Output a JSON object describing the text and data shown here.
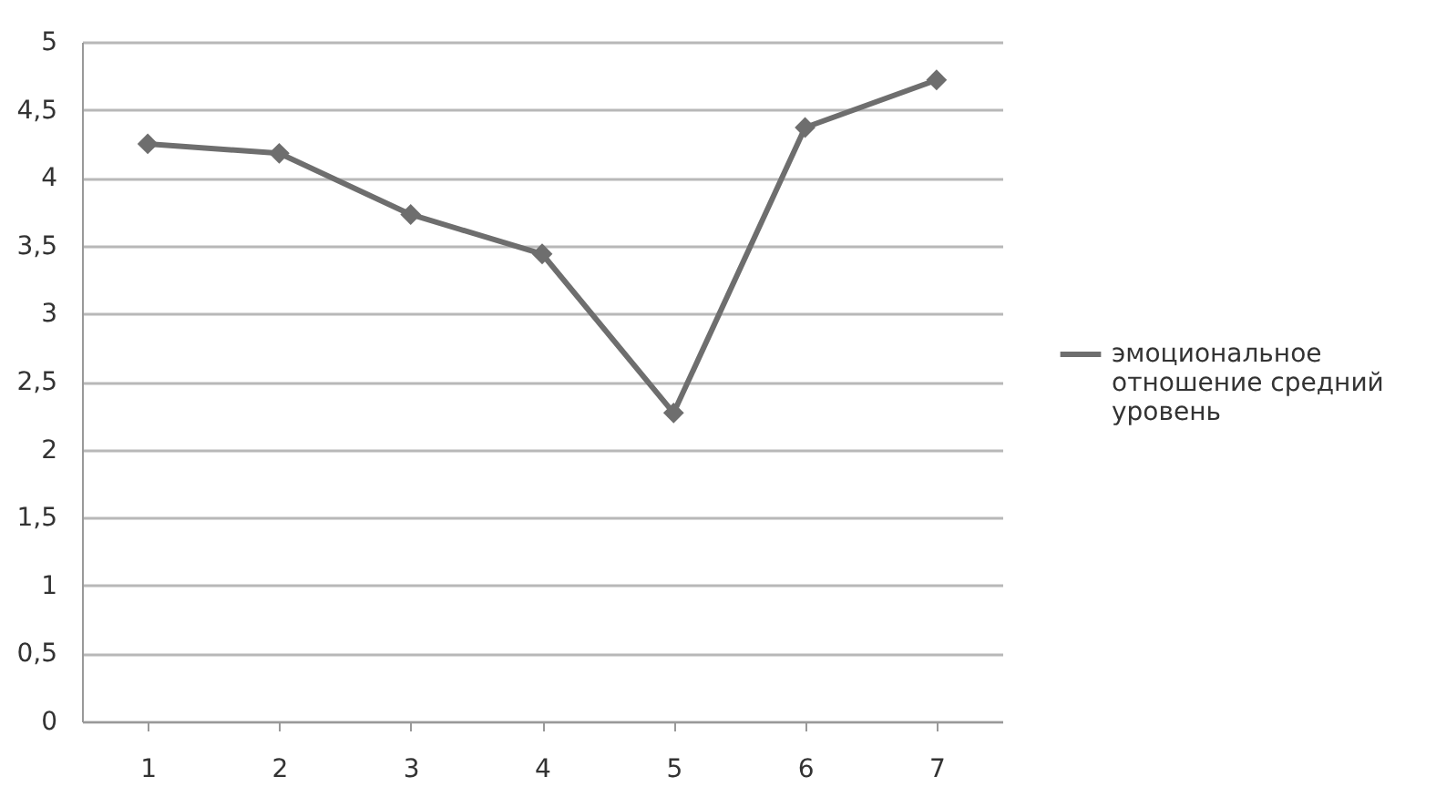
{
  "chart_data": {
    "type": "line",
    "categories": [
      "1",
      "2",
      "3",
      "4",
      "5",
      "6",
      "7"
    ],
    "series": [
      {
        "name": "эмоциональное отношение средний уровень",
        "color": "#6e6e6e",
        "values": [
          4.25,
          4.18,
          3.73,
          3.44,
          2.27,
          4.37,
          4.72
        ]
      }
    ],
    "ylim": [
      0,
      5
    ],
    "yticks": [
      0,
      {
        "value": 0.5,
        "label": "0,5"
      },
      1,
      {
        "value": 1.5,
        "label": "1,5"
      },
      2,
      {
        "value": 2.5,
        "label": "2,5"
      },
      3,
      {
        "value": 3.5,
        "label": "3,5"
      },
      4,
      {
        "value": 4.5,
        "label": "4,5"
      },
      5
    ],
    "grid": "y",
    "legend": "right",
    "marker": "diamond",
    "line_style": "solid"
  }
}
